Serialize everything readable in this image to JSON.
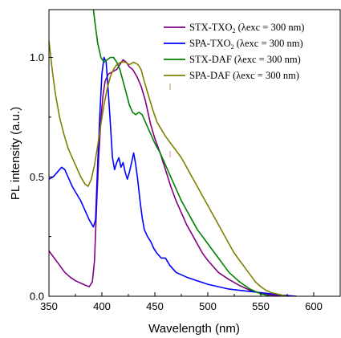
{
  "chart_data": {
    "type": "line",
    "title": "",
    "xlabel": "Wavelength (nm)",
    "ylabel": "PL intensity (a.u.)",
    "xlim": [
      350,
      625
    ],
    "ylim": [
      0,
      1.2
    ],
    "x_ticks": [
      350,
      400,
      450,
      500,
      550,
      600
    ],
    "y_ticks": [
      0.0,
      0.5,
      1.0
    ],
    "x_tick_labels": [
      "350",
      "400",
      "450",
      "500",
      "550",
      "600"
    ],
    "y_tick_labels": [
      "0.0",
      "0.5",
      "1.0"
    ],
    "grid": false,
    "legend_position": "top-right",
    "series": [
      {
        "name": "STX-TXO",
        "subscript": "2",
        "name_suffix": " (λexc = 300 nm)",
        "color": "#800080",
        "points": [
          [
            350,
            0.19
          ],
          [
            355,
            0.16
          ],
          [
            360,
            0.13
          ],
          [
            365,
            0.1
          ],
          [
            370,
            0.08
          ],
          [
            375,
            0.065
          ],
          [
            380,
            0.055
          ],
          [
            385,
            0.045
          ],
          [
            388,
            0.04
          ],
          [
            391,
            0.06
          ],
          [
            393,
            0.15
          ],
          [
            395,
            0.38
          ],
          [
            397,
            0.58
          ],
          [
            399,
            0.74
          ],
          [
            401,
            0.84
          ],
          [
            403,
            0.9
          ],
          [
            406,
            0.93
          ],
          [
            410,
            0.94
          ],
          [
            414,
            0.95
          ],
          [
            417,
            0.97
          ],
          [
            420,
            0.99
          ],
          [
            423,
            0.98
          ],
          [
            426,
            0.96
          ],
          [
            429,
            0.95
          ],
          [
            433,
            0.92
          ],
          [
            437,
            0.88
          ],
          [
            441,
            0.82
          ],
          [
            446,
            0.72
          ],
          [
            450,
            0.66
          ],
          [
            455,
            0.6
          ],
          [
            460,
            0.53
          ],
          [
            465,
            0.46
          ],
          [
            470,
            0.4
          ],
          [
            475,
            0.35
          ],
          [
            480,
            0.3
          ],
          [
            485,
            0.26
          ],
          [
            490,
            0.22
          ],
          [
            495,
            0.18
          ],
          [
            500,
            0.15
          ],
          [
            510,
            0.1
          ],
          [
            520,
            0.07
          ],
          [
            530,
            0.045
          ],
          [
            540,
            0.025
          ],
          [
            550,
            0.012
          ],
          [
            560,
            0.005
          ],
          [
            570,
            0.0
          ]
        ]
      },
      {
        "name": "SPA-TXO",
        "subscript": "2",
        "name_suffix": " (λexc = 300 nm)",
        "color": "#0000ff",
        "points": [
          [
            350,
            0.49
          ],
          [
            354,
            0.5
          ],
          [
            358,
            0.52
          ],
          [
            362,
            0.54
          ],
          [
            365,
            0.53
          ],
          [
            368,
            0.5
          ],
          [
            372,
            0.46
          ],
          [
            376,
            0.43
          ],
          [
            380,
            0.4
          ],
          [
            384,
            0.36
          ],
          [
            388,
            0.32
          ],
          [
            392,
            0.29
          ],
          [
            394,
            0.32
          ],
          [
            396,
            0.55
          ],
          [
            398,
            0.76
          ],
          [
            400,
            0.93
          ],
          [
            402,
            1.0
          ],
          [
            404,
            0.98
          ],
          [
            406,
            0.86
          ],
          [
            408,
            0.72
          ],
          [
            410,
            0.58
          ],
          [
            412,
            0.53
          ],
          [
            414,
            0.56
          ],
          [
            416,
            0.58
          ],
          [
            418,
            0.54
          ],
          [
            420,
            0.56
          ],
          [
            422,
            0.52
          ],
          [
            424,
            0.49
          ],
          [
            426,
            0.52
          ],
          [
            428,
            0.56
          ],
          [
            430,
            0.6
          ],
          [
            432,
            0.55
          ],
          [
            434,
            0.48
          ],
          [
            436,
            0.4
          ],
          [
            438,
            0.33
          ],
          [
            440,
            0.28
          ],
          [
            443,
            0.25
          ],
          [
            446,
            0.23
          ],
          [
            449,
            0.2
          ],
          [
            452,
            0.18
          ],
          [
            456,
            0.16
          ],
          [
            460,
            0.16
          ],
          [
            464,
            0.13
          ],
          [
            470,
            0.1
          ],
          [
            480,
            0.08
          ],
          [
            490,
            0.065
          ],
          [
            500,
            0.05
          ],
          [
            510,
            0.04
          ],
          [
            520,
            0.03
          ],
          [
            530,
            0.025
          ],
          [
            540,
            0.02
          ],
          [
            550,
            0.015
          ],
          [
            560,
            0.01
          ],
          [
            570,
            0.005
          ],
          [
            584,
            0.0
          ]
        ]
      },
      {
        "name": "STX-DAF",
        "subscript": "",
        "name_suffix": " (λexc = 300 nm)",
        "color": "#008000",
        "points": [
          [
            386,
            1.45
          ],
          [
            390,
            1.28
          ],
          [
            393,
            1.16
          ],
          [
            396,
            1.06
          ],
          [
            399,
            1.0
          ],
          [
            402,
            0.98
          ],
          [
            405,
            0.99
          ],
          [
            408,
            1.0
          ],
          [
            411,
            1.0
          ],
          [
            414,
            0.98
          ],
          [
            417,
            0.95
          ],
          [
            420,
            0.9
          ],
          [
            423,
            0.85
          ],
          [
            426,
            0.8
          ],
          [
            429,
            0.77
          ],
          [
            432,
            0.76
          ],
          [
            435,
            0.77
          ],
          [
            438,
            0.76
          ],
          [
            441,
            0.73
          ],
          [
            445,
            0.69
          ],
          [
            450,
            0.64
          ],
          [
            455,
            0.6
          ],
          [
            460,
            0.55
          ],
          [
            465,
            0.5
          ],
          [
            470,
            0.45
          ],
          [
            475,
            0.4
          ],
          [
            480,
            0.36
          ],
          [
            485,
            0.32
          ],
          [
            490,
            0.28
          ],
          [
            495,
            0.25
          ],
          [
            500,
            0.22
          ],
          [
            505,
            0.19
          ],
          [
            510,
            0.16
          ],
          [
            515,
            0.13
          ],
          [
            520,
            0.1
          ],
          [
            525,
            0.08
          ],
          [
            530,
            0.06
          ],
          [
            535,
            0.045
          ],
          [
            540,
            0.03
          ],
          [
            545,
            0.02
          ],
          [
            550,
            0.01
          ],
          [
            555,
            0.005
          ],
          [
            560,
            0.0
          ]
        ]
      },
      {
        "name": "SPA-DAF",
        "subscript": "",
        "name_suffix": " (λexc = 300 nm)",
        "color": "#808000",
        "points": [
          [
            350,
            1.07
          ],
          [
            353,
            0.95
          ],
          [
            356,
            0.85
          ],
          [
            360,
            0.75
          ],
          [
            364,
            0.68
          ],
          [
            368,
            0.62
          ],
          [
            372,
            0.58
          ],
          [
            376,
            0.54
          ],
          [
            380,
            0.5
          ],
          [
            384,
            0.47
          ],
          [
            387,
            0.46
          ],
          [
            390,
            0.49
          ],
          [
            393,
            0.55
          ],
          [
            396,
            0.63
          ],
          [
            399,
            0.72
          ],
          [
            402,
            0.8
          ],
          [
            405,
            0.87
          ],
          [
            408,
            0.92
          ],
          [
            411,
            0.95
          ],
          [
            414,
            0.97
          ],
          [
            418,
            0.98
          ],
          [
            422,
            0.98
          ],
          [
            426,
            0.97
          ],
          [
            430,
            0.98
          ],
          [
            434,
            0.97
          ],
          [
            437,
            0.95
          ],
          [
            440,
            0.9
          ],
          [
            444,
            0.84
          ],
          [
            448,
            0.78
          ],
          [
            452,
            0.73
          ],
          [
            456,
            0.7
          ],
          [
            460,
            0.67
          ],
          [
            465,
            0.64
          ],
          [
            470,
            0.61
          ],
          [
            475,
            0.58
          ],
          [
            480,
            0.54
          ],
          [
            485,
            0.5
          ],
          [
            490,
            0.46
          ],
          [
            495,
            0.42
          ],
          [
            500,
            0.38
          ],
          [
            505,
            0.34
          ],
          [
            510,
            0.3
          ],
          [
            515,
            0.26
          ],
          [
            520,
            0.22
          ],
          [
            525,
            0.18
          ],
          [
            530,
            0.15
          ],
          [
            535,
            0.12
          ],
          [
            540,
            0.09
          ],
          [
            545,
            0.06
          ],
          [
            550,
            0.04
          ],
          [
            555,
            0.025
          ],
          [
            560,
            0.015
          ],
          [
            565,
            0.01
          ],
          [
            570,
            0.005
          ],
          [
            575,
            0.0
          ]
        ]
      }
    ]
  }
}
